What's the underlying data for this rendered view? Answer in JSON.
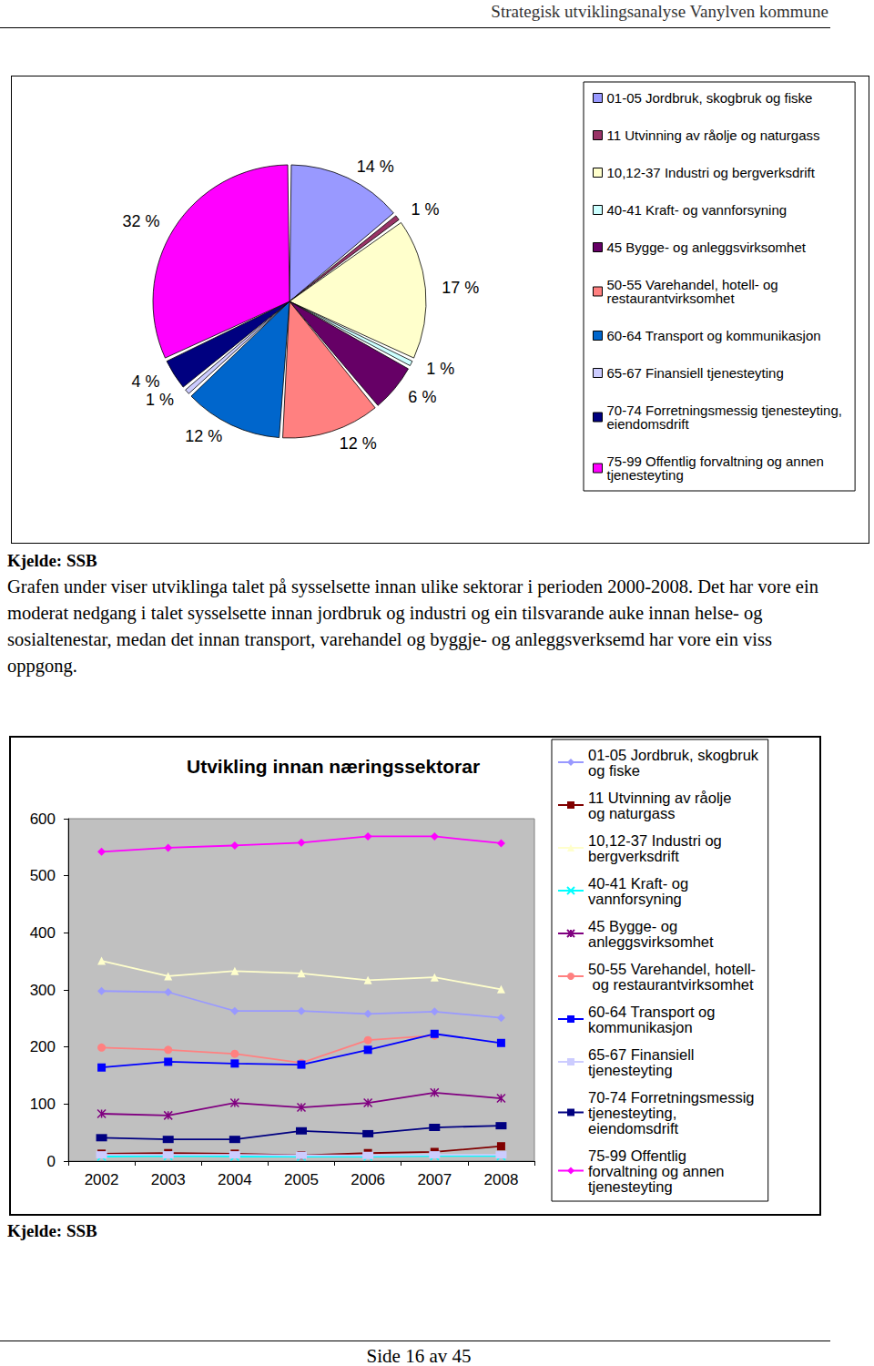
{
  "header": "Strategisk utviklingsanalyse Vanylven kommune",
  "chart_data": [
    {
      "type": "pie",
      "categories": [
        "01-05 Jordbruk, skogbruk og fiske",
        "11 Utvinning av råolje og naturgass",
        "10,12-37 Industri og bergverksdrift",
        "40-41 Kraft- og vannforsyning",
        "45 Bygge- og anleggsvirksomhet",
        "50-55 Varehandel, hotell- og restaurantvirksomhet",
        "60-64 Transport og kommunikasjon",
        "65-67 Finansiell tjenesteyting",
        "70-74 Forretningsmessig tjenesteyting, eiendomsdrift",
        "75-99 Offentlig forvaltning og annen tjenesteyting"
      ],
      "values": [
        14,
        1,
        17,
        1,
        6,
        12,
        12,
        1,
        4,
        32
      ],
      "value_labels": [
        "14 %",
        "1 %",
        "17 %",
        "1 %",
        "6 %",
        "12 %",
        "12 %",
        "1 %",
        "4 %",
        "32 %"
      ],
      "colors": [
        "#9999ff",
        "#993366",
        "#ffffcc",
        "#ccffff",
        "#660066",
        "#ff8080",
        "#0066cc",
        "#ccccff",
        "#000080",
        "#ff00ff"
      ],
      "data_labels": true,
      "legend": "right"
    },
    {
      "type": "line",
      "title": "Utvikling innan næringssektorar",
      "categories": [
        "2002",
        "2003",
        "2004",
        "2005",
        "2006",
        "2007",
        "2008"
      ],
      "series": [
        {
          "name": "01-05 Jordbruk, skogbruk og fiske",
          "color": "#9999ff",
          "marker": "diamond",
          "values": [
            298,
            296,
            263,
            263,
            258,
            262,
            251
          ]
        },
        {
          "name": "11 Utvinning av råolje og naturgass",
          "color": "#800000",
          "marker": "square",
          "values": [
            13,
            14,
            13,
            10,
            14,
            16,
            26
          ]
        },
        {
          "name": "10,12-37 Industri og bergverksdrift",
          "color": "#ffffcc",
          "marker": "triangle",
          "values": [
            351,
            324,
            333,
            329,
            317,
            322,
            301
          ]
        },
        {
          "name": "40-41 Kraft- og vannforsyning",
          "color": "#00ffff",
          "marker": "x",
          "values": [
            8,
            9,
            8,
            8,
            8,
            9,
            9
          ]
        },
        {
          "name": "45 Bygge- og anleggsvirksomhet",
          "color": "#800080",
          "marker": "star",
          "values": [
            83,
            80,
            102,
            94,
            102,
            120,
            110
          ]
        },
        {
          "name": "50-55 Varehandel, hotell- og restaurantvirksomhet",
          "color": "#ff8080",
          "marker": "circle",
          "values": [
            199,
            195,
            188,
            172,
            212,
            220,
            null
          ]
        },
        {
          "name": "60-64 Transport og kommunikasjon",
          "color": "#0000ff",
          "marker": "square",
          "values": [
            164,
            174,
            171,
            169,
            195,
            223,
            207
          ]
        },
        {
          "name": "65-67 Finansiell tjenesteyting",
          "color": "#ccccff",
          "marker": "dash",
          "values": [
            11,
            11,
            11,
            10,
            10,
            11,
            11
          ]
        },
        {
          "name": "70-74 Forretningsmessig tjenesteyting, eiendomsdrift",
          "color": "#000080",
          "marker": "dash",
          "values": [
            41,
            38,
            38,
            53,
            48,
            59,
            62
          ]
        },
        {
          "name": "75-99 Offentlig forvaltning og annen tjenesteyting",
          "color": "#ff00ff",
          "marker": "diamond",
          "values": [
            542,
            549,
            553,
            558,
            569,
            569,
            557
          ]
        }
      ],
      "ylim": [
        0,
        600
      ],
      "yticks": [
        0,
        100,
        200,
        300,
        400,
        500,
        600
      ],
      "grid": false,
      "legend": "right"
    }
  ],
  "sources": [
    "Kjelde: SSB",
    "Kjelde: SSB"
  ],
  "paragraph": "Grafen under viser utviklinga talet på sysselsette innan ulike sektorar i perioden 2000-2008. Det har vore ein moderat nedgang i talet sysselsette innan jordbruk og industri og ein tilsvarande auke innan helse- og sosialtenestar, medan det innan transport, varehandel og byggje- og anleggsverksemd har vore ein viss oppgong.",
  "footer": "Side 16 av 45"
}
